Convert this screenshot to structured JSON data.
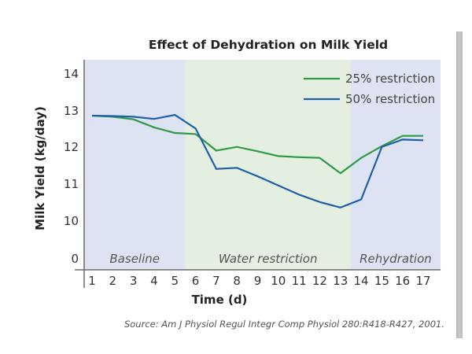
{
  "chart_data": {
    "type": "line",
    "title": "Effect of Dehydration on Milk Yield",
    "xlabel": "Time (d)",
    "ylabel": "Milk Yield (kg/day)",
    "x": [
      1,
      2,
      3,
      4,
      5,
      6,
      7,
      8,
      9,
      10,
      11,
      12,
      13,
      14,
      15,
      16,
      17
    ],
    "x_ticks": [
      "1",
      "2",
      "3",
      "4",
      "5",
      "6",
      "7",
      "8",
      "9",
      "10",
      "11",
      "12",
      "13",
      "14",
      "15",
      "16",
      "17"
    ],
    "y_ticks": [
      "14",
      "13",
      "12",
      "11",
      "10",
      "0"
    ],
    "ylim": [
      9.0,
      14.4
    ],
    "y_axis_break": "0 shown below 10 (broken axis)",
    "series": [
      {
        "name": "25% restriction",
        "color": "#2e9a48",
        "values": [
          12.85,
          12.82,
          12.75,
          12.53,
          12.38,
          12.35,
          11.9,
          12.0,
          11.88,
          11.75,
          11.72,
          11.7,
          11.28,
          11.7,
          12.02,
          12.3,
          12.3
        ]
      },
      {
        "name": "50% restriction",
        "color": "#1f5fa8",
        "values": [
          12.85,
          12.84,
          12.82,
          12.76,
          12.87,
          12.5,
          11.4,
          11.43,
          11.2,
          10.95,
          10.7,
          10.5,
          10.35,
          10.57,
          12.0,
          12.2,
          12.18
        ]
      }
    ],
    "regions": [
      {
        "label": "Baseline",
        "from": 0.6,
        "to": 5.5,
        "color": "#dde3f2"
      },
      {
        "label": "Water restriction",
        "from": 5.5,
        "to": 13.5,
        "color": "#e4efe2"
      },
      {
        "label": "Rehydration",
        "from": 13.5,
        "to": 17.85,
        "color": "#dde3f2"
      }
    ],
    "legend_position": "top-right",
    "grid": false,
    "source": "Source: Am J Physiol Regul Integr Comp Physiol 280:R418-R427, 2001."
  }
}
